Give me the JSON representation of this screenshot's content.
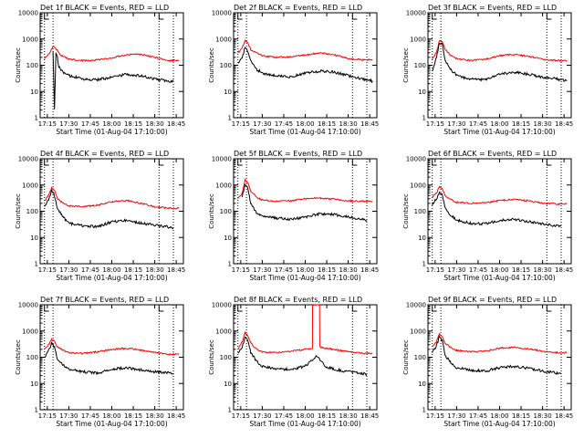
{
  "chart_data": [
    {
      "type": "line",
      "title": "Det 1f BLACK = Events, RED = LLD",
      "xlabel": "Start Time (01-Aug-04 17:10:00)",
      "ylabel": "Counts/sec",
      "x_ticks": [
        "17:15",
        "17:30",
        "17:45",
        "18:00",
        "18:15",
        "18:30",
        "18:45"
      ],
      "y_ticks": [
        "1",
        "10",
        "100",
        "1000",
        "10000"
      ],
      "yscale": "log",
      "ylim": [
        1,
        10000
      ],
      "xlim_minutes": [
        1030,
        1130
      ],
      "markers_minutes": [
        1033,
        1039,
        1113,
        1123
      ],
      "series": [
        {
          "name": "LLD",
          "color": "#ff0000",
          "values_t": [
            1033,
            1037,
            1039,
            1041,
            1044,
            1050,
            1060,
            1070,
            1080,
            1090,
            1100,
            1110,
            1120,
            1123,
            1127
          ],
          "values": [
            180,
            300,
            560,
            430,
            250,
            170,
            150,
            160,
            190,
            250,
            260,
            200,
            150,
            150,
            150
          ]
        },
        {
          "name": "Events",
          "color": "#000000",
          "values_t": [
            1039,
            1040,
            1041,
            1042,
            1043,
            1045,
            1050,
            1060,
            1070,
            1080,
            1090,
            1100,
            1110,
            1120,
            1123
          ],
          "values": [
            350,
            2,
            300,
            200,
            90,
            60,
            40,
            30,
            28,
            35,
            45,
            40,
            30,
            25,
            25
          ]
        }
      ]
    },
    {
      "type": "line",
      "title": "Det 2f BLACK = Events, RED = LLD",
      "xlabel": "Start Time (01-Aug-04 17:10:00)",
      "ylabel": "Counts/sec",
      "x_ticks": [
        "17:15",
        "17:30",
        "17:45",
        "18:00",
        "18:15",
        "18:30",
        "18:45"
      ],
      "y_ticks": [
        "1",
        "10",
        "100",
        "1000",
        "10000"
      ],
      "yscale": "log",
      "ylim": [
        1,
        10000
      ],
      "xlim_minutes": [
        1030,
        1130
      ],
      "markers_minutes": [
        1033,
        1039,
        1113,
        1123
      ],
      "series": [
        {
          "name": "LLD",
          "color": "#ff0000",
          "values_t": [
            1033,
            1036,
            1038,
            1040,
            1042,
            1046,
            1050,
            1060,
            1070,
            1080,
            1090,
            1100,
            1110,
            1120,
            1127
          ],
          "values": [
            300,
            450,
            900,
            700,
            400,
            300,
            230,
            200,
            210,
            240,
            300,
            250,
            180,
            160,
            160
          ]
        },
        {
          "name": "Events",
          "color": "#000000",
          "values_t": [
            1033,
            1036,
            1038,
            1040,
            1042,
            1046,
            1050,
            1060,
            1070,
            1080,
            1090,
            1100,
            1110,
            1120,
            1127
          ],
          "values": [
            120,
            180,
            500,
            350,
            150,
            70,
            50,
            40,
            35,
            50,
            60,
            55,
            40,
            30,
            25
          ]
        }
      ]
    },
    {
      "type": "line",
      "title": "Det 3f BLACK = Events, RED = LLD",
      "xlabel": "Start Time (01-Aug-04 17:10:00)",
      "ylabel": "Counts/sec",
      "x_ticks": [
        "17:15",
        "17:30",
        "17:45",
        "18:00",
        "18:15",
        "18:30",
        "18:45"
      ],
      "y_ticks": [
        "1",
        "10",
        "100",
        "1000",
        "10000"
      ],
      "yscale": "log",
      "ylim": [
        1,
        10000
      ],
      "xlim_minutes": [
        1030,
        1130
      ],
      "markers_minutes": [
        1033,
        1039,
        1113,
        1123
      ],
      "series": [
        {
          "name": "LLD",
          "color": "#ff0000",
          "values_t": [
            1033,
            1036,
            1038,
            1040,
            1042,
            1046,
            1050,
            1060,
            1070,
            1080,
            1090,
            1100,
            1110,
            1120,
            1127
          ],
          "values": [
            180,
            300,
            900,
            800,
            400,
            230,
            180,
            150,
            170,
            230,
            260,
            220,
            170,
            150,
            150
          ]
        },
        {
          "name": "Events",
          "color": "#000000",
          "values_t": [
            1033,
            1036,
            1038,
            1040,
            1042,
            1046,
            1050,
            1060,
            1070,
            1080,
            1090,
            1100,
            1110,
            1120,
            1127
          ],
          "values": [
            60,
            200,
            750,
            600,
            150,
            70,
            40,
            30,
            28,
            45,
            55,
            45,
            35,
            30,
            25
          ]
        }
      ]
    },
    {
      "type": "line",
      "title": "Det 4f BLACK = Events, RED = LLD",
      "xlabel": "Start Time (01-Aug-04 17:10:00)",
      "ylabel": "Counts/sec",
      "x_ticks": [
        "17:15",
        "17:30",
        "17:45",
        "18:00",
        "18:15",
        "18:30",
        "18:45"
      ],
      "y_ticks": [
        "1",
        "10",
        "100",
        "1000",
        "10000"
      ],
      "yscale": "log",
      "ylim": [
        1,
        10000
      ],
      "xlim_minutes": [
        1030,
        1130
      ],
      "markers_minutes": [
        1033,
        1039,
        1113,
        1123
      ],
      "series": [
        {
          "name": "LLD",
          "color": "#ff0000",
          "values_t": [
            1033,
            1036,
            1038,
            1040,
            1042,
            1046,
            1050,
            1060,
            1070,
            1080,
            1090,
            1100,
            1110,
            1120,
            1127
          ],
          "values": [
            250,
            400,
            800,
            600,
            300,
            200,
            160,
            150,
            170,
            230,
            260,
            200,
            150,
            130,
            130
          ]
        },
        {
          "name": "Events",
          "color": "#000000",
          "values_t": [
            1033,
            1036,
            1038,
            1040,
            1042,
            1046,
            1050,
            1060,
            1070,
            1080,
            1090,
            1100,
            1110,
            1120,
            1123
          ],
          "values": [
            150,
            300,
            600,
            400,
            120,
            60,
            35,
            28,
            25,
            40,
            45,
            35,
            30,
            25,
            22
          ]
        }
      ]
    },
    {
      "type": "line",
      "title": "Det 5f BLACK = Events, RED = LLD",
      "xlabel": "Start Time (01-Aug-04 17:10:00)",
      "ylabel": "Counts/sec",
      "x_ticks": [
        "17:15",
        "17:30",
        "17:45",
        "18:00",
        "18:15",
        "18:30",
        "18:45"
      ],
      "y_ticks": [
        "1",
        "10",
        "100",
        "1000",
        "10000"
      ],
      "yscale": "log",
      "ylim": [
        1,
        10000
      ],
      "xlim_minutes": [
        1030,
        1130
      ],
      "markers_minutes": [
        1033,
        1039,
        1113,
        1123
      ],
      "series": [
        {
          "name": "LLD",
          "color": "#ff0000",
          "values_t": [
            1033,
            1036,
            1038,
            1040,
            1042,
            1046,
            1050,
            1060,
            1070,
            1080,
            1090,
            1100,
            1110,
            1120,
            1127
          ],
          "values": [
            300,
            500,
            1600,
            1200,
            600,
            350,
            270,
            240,
            250,
            300,
            320,
            290,
            250,
            240,
            240
          ]
        },
        {
          "name": "Events",
          "color": "#000000",
          "values_t": [
            1036,
            1038,
            1040,
            1042,
            1046,
            1050,
            1060,
            1070,
            1080,
            1090,
            1100,
            1110,
            1120,
            1123
          ],
          "values": [
            350,
            1100,
            700,
            200,
            90,
            65,
            55,
            50,
            60,
            80,
            75,
            60,
            50,
            45
          ]
        }
      ]
    },
    {
      "type": "line",
      "title": "Det 6f BLACK = Events, RED = LLD",
      "xlabel": "Start Time (01-Aug-04 17:10:00)",
      "ylabel": "Counts/sec",
      "x_ticks": [
        "17:15",
        "17:30",
        "17:45",
        "18:00",
        "18:15",
        "18:30",
        "18:45"
      ],
      "y_ticks": [
        "1",
        "10",
        "100",
        "1000",
        "10000"
      ],
      "yscale": "log",
      "ylim": [
        1,
        10000
      ],
      "xlim_minutes": [
        1030,
        1130
      ],
      "markers_minutes": [
        1033,
        1039,
        1113,
        1123
      ],
      "series": [
        {
          "name": "LLD",
          "color": "#ff0000",
          "values_t": [
            1033,
            1036,
            1038,
            1040,
            1042,
            1046,
            1050,
            1060,
            1070,
            1080,
            1090,
            1100,
            1110,
            1120,
            1127
          ],
          "values": [
            350,
            500,
            850,
            700,
            400,
            280,
            220,
            200,
            210,
            260,
            280,
            250,
            200,
            190,
            190
          ]
        },
        {
          "name": "Events",
          "color": "#000000",
          "values_t": [
            1033,
            1036,
            1038,
            1040,
            1042,
            1046,
            1050,
            1060,
            1070,
            1080,
            1090,
            1100,
            1110,
            1120,
            1123
          ],
          "values": [
            180,
            300,
            550,
            400,
            130,
            70,
            45,
            35,
            33,
            45,
            50,
            40,
            33,
            28,
            27
          ]
        }
      ]
    },
    {
      "type": "line",
      "title": "Det 7f BLACK = Events, RED = LLD",
      "xlabel": "Start Time (01-Aug-04 17:10:00)",
      "ylabel": "Counts/sec",
      "x_ticks": [
        "17:15",
        "17:30",
        "17:45",
        "18:00",
        "18:15",
        "18:30",
        "18:45"
      ],
      "y_ticks": [
        "1",
        "10",
        "100",
        "1000",
        "10000"
      ],
      "yscale": "log",
      "ylim": [
        1,
        10000
      ],
      "xlim_minutes": [
        1030,
        1130
      ],
      "markers_minutes": [
        1033,
        1039,
        1113,
        1123
      ],
      "series": [
        {
          "name": "LLD",
          "color": "#ff0000",
          "values_t": [
            1033,
            1036,
            1038,
            1040,
            1042,
            1046,
            1050,
            1060,
            1070,
            1080,
            1090,
            1100,
            1110,
            1120,
            1127
          ],
          "values": [
            200,
            300,
            500,
            400,
            250,
            180,
            150,
            140,
            160,
            200,
            220,
            190,
            150,
            130,
            130
          ]
        },
        {
          "name": "Events",
          "color": "#000000",
          "values_t": [
            1033,
            1036,
            1038,
            1040,
            1042,
            1046,
            1050,
            1060,
            1070,
            1080,
            1090,
            1100,
            1110,
            1120,
            1123
          ],
          "values": [
            100,
            180,
            350,
            250,
            90,
            50,
            35,
            28,
            25,
            35,
            40,
            33,
            28,
            25,
            24
          ]
        }
      ]
    },
    {
      "type": "line",
      "title": "Det 8f BLACK = Events, RED = LLD",
      "xlabel": "Start Time (01-Aug-04 17:10:00)",
      "ylabel": "Counts/sec",
      "x_ticks": [
        "17:15",
        "17:30",
        "17:45",
        "18:00",
        "18:15",
        "18:30",
        "18:45"
      ],
      "y_ticks": [
        "1",
        "10",
        "100",
        "1000",
        "10000"
      ],
      "yscale": "log",
      "ylim": [
        1,
        10000
      ],
      "xlim_minutes": [
        1030,
        1130
      ],
      "markers_minutes": [
        1033,
        1039,
        1113,
        1123
      ],
      "series": [
        {
          "name": "LLD",
          "color": "#ff0000",
          "values_t": [
            1033,
            1036,
            1038,
            1040,
            1042,
            1046,
            1050,
            1060,
            1070,
            1080,
            1085,
            1085.1,
            1090,
            1090.1,
            1092,
            1100,
            1110,
            1120,
            1127
          ],
          "values": [
            200,
            400,
            850,
            650,
            350,
            200,
            160,
            150,
            170,
            200,
            220,
            10000,
            10000,
            260,
            230,
            200,
            160,
            140,
            140
          ]
        },
        {
          "name": "Events",
          "color": "#000000",
          "values_t": [
            1033,
            1036,
            1038,
            1040,
            1042,
            1046,
            1050,
            1060,
            1070,
            1080,
            1086,
            1088,
            1090,
            1094,
            1100,
            1110,
            1120,
            1123
          ],
          "values": [
            150,
            250,
            600,
            450,
            150,
            70,
            45,
            35,
            35,
            45,
            90,
            110,
            80,
            45,
            35,
            28,
            24,
            22
          ]
        }
      ]
    },
    {
      "type": "line",
      "title": "Det 9f BLACK = Events, RED = LLD",
      "xlabel": "Start Time (01-Aug-04 17:10:00)",
      "ylabel": "Counts/sec",
      "x_ticks": [
        "17:15",
        "17:30",
        "17:45",
        "18:00",
        "18:15",
        "18:30",
        "18:45"
      ],
      "y_ticks": [
        "1",
        "10",
        "100",
        "1000",
        "10000"
      ],
      "yscale": "log",
      "ylim": [
        1,
        10000
      ],
      "xlim_minutes": [
        1030,
        1130
      ],
      "markers_minutes": [
        1033,
        1039,
        1113,
        1123
      ],
      "series": [
        {
          "name": "LLD",
          "color": "#ff0000",
          "values_t": [
            1033,
            1036,
            1038,
            1040,
            1042,
            1046,
            1050,
            1060,
            1070,
            1080,
            1090,
            1100,
            1110,
            1120,
            1127
          ],
          "values": [
            250,
            400,
            800,
            600,
            350,
            230,
            180,
            160,
            170,
            220,
            240,
            210,
            170,
            150,
            150
          ]
        },
        {
          "name": "Events",
          "color": "#000000",
          "values_t": [
            1033,
            1036,
            1038,
            1040,
            1042,
            1046,
            1050,
            1060,
            1070,
            1080,
            1090,
            1100,
            1110,
            1120,
            1123
          ],
          "values": [
            150,
            280,
            600,
            450,
            120,
            60,
            40,
            32,
            30,
            40,
            45,
            38,
            30,
            25,
            24
          ]
        }
      ]
    }
  ]
}
